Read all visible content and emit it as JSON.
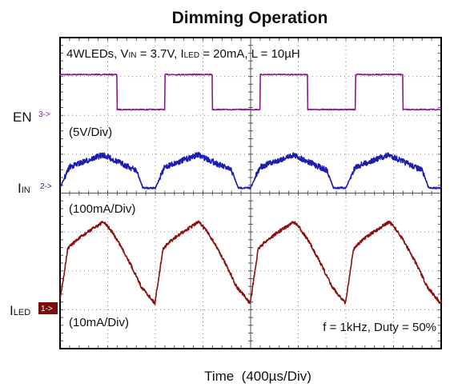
{
  "chart_data": {
    "type": "line",
    "title": "Dimming Operation",
    "conditions": {
      "prefix": "4WLEDs, ",
      "vin_main": "V",
      "vin_sub": "IN",
      "vin_value": " = 3.7V, ",
      "iled_main": "I",
      "iled_sub": "LED",
      "iled_value": " = 20mA, L = 10µH"
    },
    "annotation": "f = 1kHz, Duty = 50%",
    "xlabel": "Time  (400µs/Div)",
    "grid": true,
    "x_unit": "ms",
    "xlim": [
      0,
      4.0
    ],
    "channels": [
      {
        "name_main": "EN",
        "name_sub": "",
        "marker": "3->",
        "scale": "(5V/Div)",
        "color": "#8b1a8c",
        "type": "square",
        "period_ms": 1.0,
        "duty": 0.5,
        "edges_ms": [
          0.6,
          1.1,
          1.6,
          2.1,
          2.6,
          3.1,
          3.6
        ],
        "high_div": 0.9,
        "low_div": 0.0
      },
      {
        "name_main": "I",
        "name_sub": "IN",
        "marker": "2->",
        "scale": "(100mA/Div)",
        "color": "#1c1cb0",
        "type": "ramp",
        "peak_div": 0.85,
        "plateau_div": 0.6,
        "low_div": 0.0,
        "drop_ms": [
          0.85,
          1.85,
          2.85,
          3.85
        ],
        "rise_ms": [
          0.1,
          1.1,
          2.1,
          3.1
        ]
      },
      {
        "name_main": "I",
        "name_sub": "LED",
        "marker": "1->",
        "scale": "(10mA/Div)",
        "color": "#8b1010",
        "type": "hump",
        "peak_div": 2.1,
        "low_div": 0.0,
        "peaks_ms": [
          0.45,
          1.45,
          2.45,
          3.45
        ],
        "valleys_ms": [
          0.0,
          1.0,
          2.0,
          3.0,
          4.0
        ]
      }
    ]
  },
  "colors": {
    "grid": "#888888",
    "frame": "#000000",
    "iled_marker_bg": "#7a0d0d"
  }
}
